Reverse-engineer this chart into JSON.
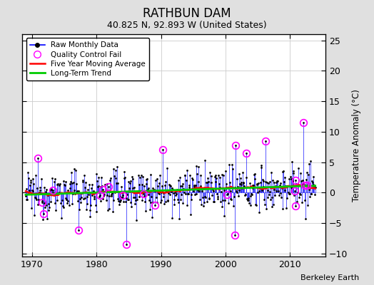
{
  "title": "RATHBUN DAM",
  "subtitle": "40.825 N, 92.893 W (United States)",
  "credit": "Berkeley Earth",
  "ylabel": "Temperature Anomaly (°C)",
  "xlim": [
    1968.5,
    2015.5
  ],
  "ylim": [
    -10.5,
    26
  ],
  "yticks": [
    -10,
    -5,
    0,
    5,
    10,
    15,
    20,
    25
  ],
  "xticks": [
    1970,
    1980,
    1990,
    2000,
    2010
  ],
  "start_year": 1969,
  "end_year": 2013,
  "background_color": "#e0e0e0",
  "plot_bg_color": "#ffffff",
  "line_color": "#0000ff",
  "ma_color": "#ff0000",
  "trend_color": "#00cc00",
  "qc_color": "#ff00ff",
  "seed": 12345
}
